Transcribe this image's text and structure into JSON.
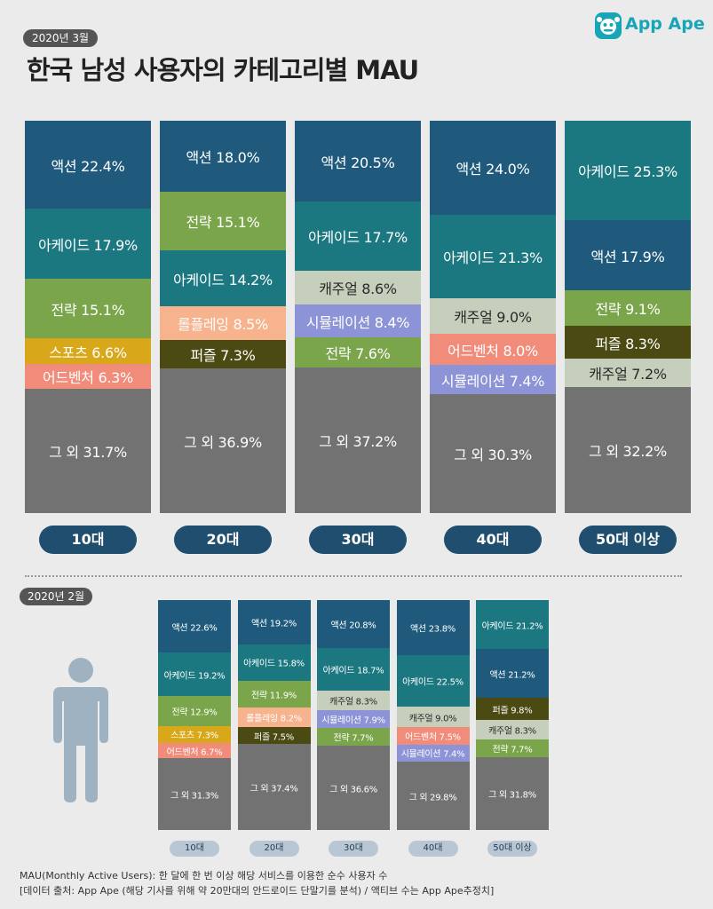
{
  "top_badge": "2020년 3월",
  "title": "한국 남성 사용자의 카테고리별 MAU",
  "logo_text": "App Ape",
  "bottom_badge": "2020년 2월",
  "notes": [
    "MAU(Monthly Active Users):  한 달에 한 번 이상 해당 서비스를 이용한 순수 사용자 수",
    "[데이터 출처: App Ape (해당 기사를 위해 약 20만대의 안드로이드 단말기를 분석) / 액티브 수는 App Ape추정치]"
  ],
  "colors": {
    "액션": "#1f5a7d",
    "아케이드": "#1b7780",
    "전략": "#7aa54a",
    "스포츠": "#d8a81a",
    "어드벤처": "#f28c7a",
    "롤플레잉": "#f7b28e",
    "퍼즐": "#4a4a12",
    "캐주얼": "#c6cfbb",
    "시뮬레이션": "#8c93d6",
    "그 외": "#727272"
  },
  "chart_data": [
    {
      "type": "bar",
      "title": "2020년 3월",
      "stacked": true,
      "categories": [
        "10대",
        "20대",
        "30대",
        "40대",
        "50대 이상"
      ],
      "unit": "%",
      "columns": [
        {
          "age": "10대",
          "segments": [
            {
              "name": "액션",
              "value": 22.4,
              "label": "액션 22.4%"
            },
            {
              "name": "아케이드",
              "value": 17.9,
              "label": "아케이드 17.9%"
            },
            {
              "name": "전략",
              "value": 15.1,
              "label": "전략 15.1%"
            },
            {
              "name": "스포츠",
              "value": 6.6,
              "label": "스포츠 6.6%"
            },
            {
              "name": "어드벤처",
              "value": 6.3,
              "label": "어드벤처 6.3%"
            },
            {
              "name": "그 외",
              "value": 31.7,
              "label": "그 외 31.7%"
            }
          ]
        },
        {
          "age": "20대",
          "segments": [
            {
              "name": "액션",
              "value": 18.0,
              "label": "액션 18.0%"
            },
            {
              "name": "전략",
              "value": 15.1,
              "label": "전략 15.1%"
            },
            {
              "name": "아케이드",
              "value": 14.2,
              "label": "아케이드 14.2%"
            },
            {
              "name": "롤플레잉",
              "value": 8.5,
              "label": "롤플레잉 8.5%"
            },
            {
              "name": "퍼즐",
              "value": 7.3,
              "label": "퍼즐 7.3%"
            },
            {
              "name": "그 외",
              "value": 36.9,
              "label": "그 외 36.9%"
            }
          ]
        },
        {
          "age": "30대",
          "segments": [
            {
              "name": "액션",
              "value": 20.5,
              "label": "액션 20.5%"
            },
            {
              "name": "아케이드",
              "value": 17.7,
              "label": "아케이드 17.7%"
            },
            {
              "name": "캐주얼",
              "value": 8.6,
              "label": "캐주얼 8.6%"
            },
            {
              "name": "시뮬레이션",
              "value": 8.4,
              "label": "시뮬레이션 8.4%"
            },
            {
              "name": "전략",
              "value": 7.6,
              "label": "전략 7.6%"
            },
            {
              "name": "그 외",
              "value": 37.2,
              "label": "그 외 37.2%"
            }
          ]
        },
        {
          "age": "40대",
          "segments": [
            {
              "name": "액션",
              "value": 24.0,
              "label": "액션 24.0%"
            },
            {
              "name": "아케이드",
              "value": 21.3,
              "label": "아케이드 21.3%"
            },
            {
              "name": "캐주얼",
              "value": 9.0,
              "label": "캐주얼 9.0%"
            },
            {
              "name": "어드벤처",
              "value": 8.0,
              "label": "어드벤처 8.0%"
            },
            {
              "name": "시뮬레이션",
              "value": 7.4,
              "label": "시뮬레이션 7.4%"
            },
            {
              "name": "그 외",
              "value": 30.3,
              "label": "그 외 30.3%"
            }
          ]
        },
        {
          "age": "50대 이상",
          "segments": [
            {
              "name": "아케이드",
              "value": 25.3,
              "label": "아케이드 25.3%"
            },
            {
              "name": "액션",
              "value": 17.9,
              "label": "액션 17.9%"
            },
            {
              "name": "전략",
              "value": 9.1,
              "label": "전략 9.1%"
            },
            {
              "name": "퍼즐",
              "value": 8.3,
              "label": "퍼즐 8.3%"
            },
            {
              "name": "캐주얼",
              "value": 7.2,
              "label": "캐주얼 7.2%"
            },
            {
              "name": "그 외",
              "value": 32.2,
              "label": "그 외 32.2%"
            }
          ]
        }
      ]
    },
    {
      "type": "bar",
      "title": "2020년 2월",
      "stacked": true,
      "categories": [
        "10대",
        "20대",
        "30대",
        "40대",
        "50대 이상"
      ],
      "unit": "%",
      "columns": [
        {
          "age": "10대",
          "segments": [
            {
              "name": "액션",
              "value": 22.6,
              "label": "액션 22.6%"
            },
            {
              "name": "아케이드",
              "value": 19.2,
              "label": "아케이드 19.2%"
            },
            {
              "name": "전략",
              "value": 12.9,
              "label": "전략 12.9%"
            },
            {
              "name": "스포츠",
              "value": 7.3,
              "label": "스포츠 7.3%"
            },
            {
              "name": "어드벤처",
              "value": 6.7,
              "label": "어드벤처 6.7%"
            },
            {
              "name": "그 외",
              "value": 31.3,
              "label": "그 외 31.3%"
            }
          ]
        },
        {
          "age": "20대",
          "segments": [
            {
              "name": "액션",
              "value": 19.2,
              "label": "액션 19.2%"
            },
            {
              "name": "아케이드",
              "value": 15.8,
              "label": "아케이드 15.8%"
            },
            {
              "name": "전략",
              "value": 11.9,
              "label": "전략 11.9%"
            },
            {
              "name": "롤플레잉",
              "value": 8.2,
              "label": "롤플레잉 8.2%"
            },
            {
              "name": "퍼즐",
              "value": 7.5,
              "label": "퍼즐 7.5%"
            },
            {
              "name": "그 외",
              "value": 37.4,
              "label": "그 외 37.4%"
            }
          ]
        },
        {
          "age": "30대",
          "segments": [
            {
              "name": "액션",
              "value": 20.8,
              "label": "액션 20.8%"
            },
            {
              "name": "아케이드",
              "value": 18.7,
              "label": "아케이드 18.7%"
            },
            {
              "name": "캐주얼",
              "value": 8.3,
              "label": "캐주얼 8.3%"
            },
            {
              "name": "시뮬레이션",
              "value": 7.9,
              "label": "시뮬레이션 7.9%"
            },
            {
              "name": "전략",
              "value": 7.7,
              "label": "전략 7.7%"
            },
            {
              "name": "그 외",
              "value": 36.6,
              "label": "그 외 36.6%"
            }
          ]
        },
        {
          "age": "40대",
          "segments": [
            {
              "name": "액션",
              "value": 23.8,
              "label": "액션 23.8%"
            },
            {
              "name": "아케이드",
              "value": 22.5,
              "label": "아케이드 22.5%"
            },
            {
              "name": "캐주얼",
              "value": 9.0,
              "label": "캐주얼 9.0%"
            },
            {
              "name": "어드벤처",
              "value": 7.5,
              "label": "어드벤처 7.5%"
            },
            {
              "name": "시뮬레이션",
              "value": 7.4,
              "label": "시뮬레이션 7.4%"
            },
            {
              "name": "그 외",
              "value": 29.8,
              "label": "그 외 29.8%"
            }
          ]
        },
        {
          "age": "50대 이상",
          "segments": [
            {
              "name": "아케이드",
              "value": 21.2,
              "label": "아케이드 21.2%"
            },
            {
              "name": "액션",
              "value": 21.2,
              "label": "액션 21.2%"
            },
            {
              "name": "퍼즐",
              "value": 9.8,
              "label": "퍼즐 9.8%"
            },
            {
              "name": "캐주얼",
              "value": 8.3,
              "label": "캐주얼 8.3%"
            },
            {
              "name": "전략",
              "value": 7.7,
              "label": "전략 7.7%"
            },
            {
              "name": "그 외",
              "value": 31.8,
              "label": "그 외 31.8%"
            }
          ]
        }
      ]
    }
  ]
}
